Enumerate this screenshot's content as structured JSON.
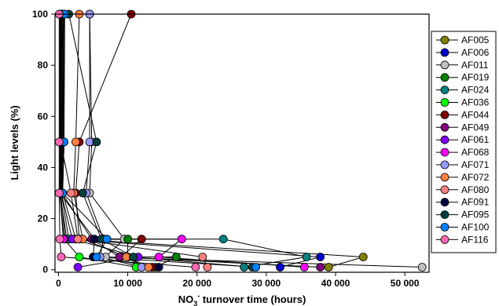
{
  "chart_data": {
    "type": "line",
    "title": "",
    "xlabel": {
      "prefix": "NO",
      "sub": "3",
      "sup": "-",
      "suffix": " turnover time (hours)"
    },
    "ylabel": "Light levels (%)",
    "xlim": [
      -500,
      53500
    ],
    "ylim": [
      -1,
      100
    ],
    "xticks": [
      0,
      10000,
      20000,
      30000,
      40000,
      50000
    ],
    "xtick_labels": [
      "0",
      "10 000",
      "20 000",
      "30 000",
      "40 000",
      "50 000"
    ],
    "yticks": [
      0,
      20,
      40,
      60,
      80,
      100
    ],
    "ytick_labels": [
      "0",
      "20",
      "40",
      "60",
      "80",
      "100"
    ],
    "grid": false,
    "legend_position": "right",
    "series": [
      {
        "name": "AF005",
        "color": "#808000",
        "points": [
          [
            300,
            100
          ],
          [
            800,
            50
          ],
          [
            600,
            30
          ],
          [
            2500,
            12
          ],
          [
            44000,
            5
          ],
          [
            39000,
            1
          ]
        ]
      },
      {
        "name": "AF006",
        "color": "#0000cc",
        "points": [
          [
            200,
            100
          ],
          [
            400,
            50
          ],
          [
            300,
            30
          ],
          [
            1000,
            12
          ],
          [
            37800,
            5
          ],
          [
            32000,
            1
          ]
        ]
      },
      {
        "name": "AF011",
        "color": "#c0c0c0",
        "points": [
          [
            4500,
            100
          ],
          [
            4800,
            50
          ],
          [
            4500,
            30
          ],
          [
            9500,
            12
          ],
          [
            6800,
            5
          ],
          [
            52500,
            1
          ]
        ]
      },
      {
        "name": "AF019",
        "color": "#008000",
        "points": [
          [
            500,
            100
          ],
          [
            400,
            50
          ],
          [
            200,
            30
          ],
          [
            1200,
            12
          ],
          [
            10000,
            12
          ],
          [
            10000,
            5
          ],
          [
            17000,
            5
          ],
          [
            14000,
            1
          ]
        ]
      },
      {
        "name": "AF024",
        "color": "#008080",
        "points": [
          [
            600,
            100
          ],
          [
            500,
            50
          ],
          [
            400,
            30
          ],
          [
            1500,
            12
          ],
          [
            23800,
            12
          ],
          [
            35800,
            5
          ],
          [
            26800,
            1
          ]
        ]
      },
      {
        "name": "AF036",
        "color": "#00ff00",
        "points": [
          [
            400,
            100
          ],
          [
            300,
            50
          ],
          [
            200,
            30
          ],
          [
            800,
            12
          ],
          [
            3000,
            5
          ],
          [
            11200,
            1
          ]
        ]
      },
      {
        "name": "AF044",
        "color": "#800000",
        "points": [
          [
            10500,
            100
          ],
          [
            3000,
            50
          ],
          [
            2500,
            30
          ],
          [
            3000,
            12
          ],
          [
            12000,
            12
          ],
          [
            9000,
            5
          ],
          [
            13500,
            1
          ]
        ]
      },
      {
        "name": "AF049",
        "color": "#800080",
        "points": [
          [
            800,
            100
          ],
          [
            700,
            50
          ],
          [
            500,
            30
          ],
          [
            4800,
            12
          ],
          [
            8800,
            5
          ],
          [
            37800,
            1
          ]
        ]
      },
      {
        "name": "AF061",
        "color": "#8000ff",
        "points": [
          [
            700,
            100
          ],
          [
            600,
            50
          ],
          [
            400,
            30
          ],
          [
            2000,
            12
          ],
          [
            11500,
            5
          ],
          [
            2800,
            1
          ]
        ]
      },
      {
        "name": "AF068",
        "color": "#ff00ff",
        "points": [
          [
            200,
            100
          ],
          [
            200,
            50
          ],
          [
            200,
            30
          ],
          [
            700,
            12
          ],
          [
            17800,
            12
          ],
          [
            14500,
            5
          ],
          [
            35500,
            1
          ]
        ]
      },
      {
        "name": "AF071",
        "color": "#9999ff",
        "points": [
          [
            4500,
            100
          ],
          [
            4500,
            50
          ],
          [
            4000,
            30
          ],
          [
            6500,
            12
          ],
          [
            6000,
            5
          ],
          [
            12000,
            1
          ]
        ]
      },
      {
        "name": "AF072",
        "color": "#ff8040",
        "points": [
          [
            3000,
            100
          ],
          [
            2500,
            50
          ],
          [
            2200,
            30
          ],
          [
            3500,
            12
          ],
          [
            9800,
            5
          ],
          [
            13000,
            1
          ]
        ]
      },
      {
        "name": "AF080",
        "color": "#ff8080",
        "points": [
          [
            300,
            100
          ],
          [
            300,
            50
          ],
          [
            1800,
            30
          ],
          [
            2800,
            12
          ],
          [
            20800,
            5
          ],
          [
            21500,
            1
          ]
        ]
      },
      {
        "name": "AF091",
        "color": "#000040",
        "points": [
          [
            400,
            100
          ],
          [
            300,
            50
          ],
          [
            200,
            30
          ],
          [
            5200,
            12
          ],
          [
            5000,
            5
          ],
          [
            14500,
            1
          ]
        ]
      },
      {
        "name": "AF095",
        "color": "#004040",
        "points": [
          [
            1500,
            100
          ],
          [
            5500,
            50
          ],
          [
            3500,
            30
          ],
          [
            6200,
            12
          ],
          [
            10800,
            5
          ],
          [
            28000,
            1
          ]
        ]
      },
      {
        "name": "AF100",
        "color": "#0080ff",
        "points": [
          [
            900,
            100
          ],
          [
            800,
            50
          ],
          [
            600,
            30
          ],
          [
            7000,
            12
          ],
          [
            5500,
            5
          ],
          [
            28500,
            1
          ]
        ]
      },
      {
        "name": "AF116",
        "color": "#ff69b4",
        "points": [
          [
            100,
            100
          ],
          [
            100,
            50
          ],
          [
            100,
            30
          ],
          [
            200,
            12
          ],
          [
            400,
            5
          ],
          [
            19800,
            1
          ]
        ]
      }
    ]
  }
}
